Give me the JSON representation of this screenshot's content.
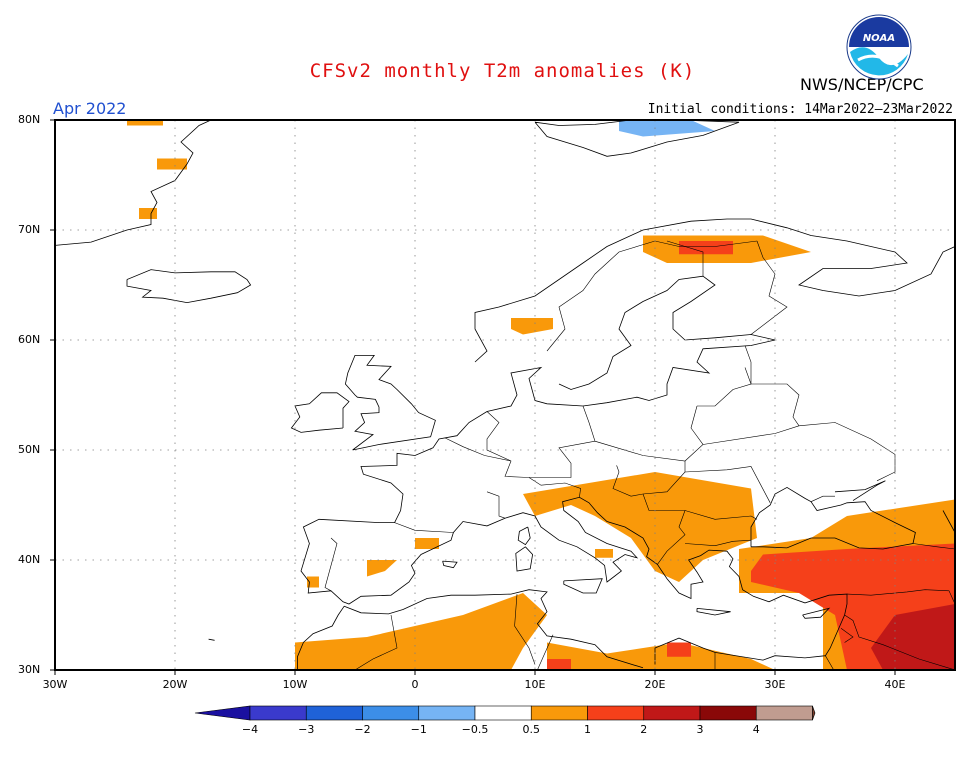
{
  "header": {
    "title": "CFSv2 monthly T2m anomalies (K)",
    "agency": "NWS/NCEP/CPC",
    "month": "Apr 2022",
    "initial_conditions": "Initial conditions: 14Mar2022–23Mar2022",
    "logo_text": "NOAA"
  },
  "colors": {
    "title": "#e01010",
    "month": "#2050d0",
    "land_outline": "#000000",
    "grid": "#808080"
  },
  "map": {
    "lon_range": [
      -30,
      45
    ],
    "lat_range": [
      30,
      80
    ],
    "lat_labels": [
      "80N",
      "70N",
      "60N",
      "50N",
      "40N",
      "30N"
    ],
    "lon_labels": [
      "30W",
      "20W",
      "10W",
      "0",
      "10E",
      "20E",
      "30E",
      "40E"
    ]
  },
  "colorbar": {
    "bins": [
      {
        "color": "#1a10a0"
      },
      {
        "color": "#3a3acc"
      },
      {
        "color": "#1f62d8"
      },
      {
        "color": "#3c8ee8"
      },
      {
        "color": "#76b4f4"
      },
      {
        "color": "#ffffff"
      },
      {
        "color": "#f9990a"
      },
      {
        "color": "#f5401a"
      },
      {
        "color": "#c01818"
      },
      {
        "color": "#8a0808"
      },
      {
        "color": "#c09c90"
      },
      {
        "color": "#7a3c2c"
      }
    ],
    "labels": [
      "−4",
      "−3",
      "−2",
      "−1",
      "−0.5",
      "0.5",
      "1",
      "2",
      "3",
      "4"
    ]
  },
  "anomaly_regions": [
    {
      "name": "svalbard",
      "class": "warm1",
      "lonlat": [
        [
          -21.5,
          76.5
        ],
        [
          -19,
          76.5
        ],
        [
          -19,
          75.5
        ],
        [
          -21.5,
          75.5
        ]
      ]
    },
    {
      "name": "svalbard-north",
      "class": "warm1",
      "lonlat": [
        [
          -24,
          80
        ],
        [
          -21,
          80
        ],
        [
          -21,
          79.5
        ],
        [
          -24,
          79.5
        ]
      ]
    },
    {
      "name": "svalbard-south",
      "class": "warm1",
      "lonlat": [
        [
          -23,
          72
        ],
        [
          -21.5,
          72
        ],
        [
          -21.5,
          71
        ],
        [
          -23,
          71
        ]
      ]
    },
    {
      "name": "franz-josef-cold",
      "class": "cold1",
      "lonlat": [
        [
          17,
          80
        ],
        [
          23,
          80
        ],
        [
          25,
          79
        ],
        [
          19,
          78.5
        ],
        [
          17,
          79
        ]
      ]
    },
    {
      "name": "lapland",
      "class": "warm1",
      "lonlat": [
        [
          19,
          69.5
        ],
        [
          29,
          69.5
        ],
        [
          33,
          68
        ],
        [
          28,
          67
        ],
        [
          21,
          67
        ],
        [
          19,
          68
        ]
      ]
    },
    {
      "name": "lapland-core",
      "class": "warm2",
      "lonlat": [
        [
          22,
          69
        ],
        [
          26.5,
          69
        ],
        [
          26.5,
          67.8
        ],
        [
          22,
          67.8
        ]
      ]
    },
    {
      "name": "norway-west",
      "class": "warm1",
      "lonlat": [
        [
          8,
          62
        ],
        [
          11.5,
          62
        ],
        [
          11.5,
          61
        ],
        [
          9,
          60.5
        ],
        [
          8,
          61
        ]
      ]
    },
    {
      "name": "balkans",
      "class": "warm1",
      "lonlat": [
        [
          9,
          46
        ],
        [
          20,
          48
        ],
        [
          28,
          46.5
        ],
        [
          28.5,
          42
        ],
        [
          24,
          40
        ],
        [
          22,
          38
        ],
        [
          20,
          39
        ],
        [
          18,
          42
        ],
        [
          15,
          44
        ],
        [
          13,
          45
        ],
        [
          10,
          44
        ]
      ]
    },
    {
      "name": "spain-east",
      "class": "warm1",
      "lonlat": [
        [
          -4,
          40
        ],
        [
          -1.5,
          40
        ],
        [
          -2.5,
          39
        ],
        [
          -4,
          38.5
        ]
      ]
    },
    {
      "name": "spain-sw",
      "class": "warm1",
      "lonlat": [
        [
          -9,
          38.5
        ],
        [
          -8,
          38.5
        ],
        [
          -8,
          37.5
        ],
        [
          -9,
          37.5
        ]
      ]
    },
    {
      "name": "italy-south",
      "class": "warm1",
      "lonlat": [
        [
          15,
          41
        ],
        [
          16.5,
          41
        ],
        [
          16.5,
          40.2
        ],
        [
          15,
          40.2
        ]
      ]
    },
    {
      "name": "sardinia",
      "class": "warm1",
      "lonlat": [
        [
          0,
          42
        ],
        [
          2,
          42
        ],
        [
          2,
          41
        ],
        [
          0,
          41
        ]
      ]
    },
    {
      "name": "north-africa",
      "class": "warm1",
      "lonlat": [
        [
          -10,
          32.5
        ],
        [
          -4,
          33
        ],
        [
          4,
          35
        ],
        [
          9,
          37
        ],
        [
          11,
          35
        ],
        [
          9,
          32
        ],
        [
          8,
          30
        ],
        [
          -10,
          30
        ]
      ]
    },
    {
      "name": "libya-egypt",
      "class": "warm1",
      "lonlat": [
        [
          11,
          32.5
        ],
        [
          16,
          31.5
        ],
        [
          22,
          32.5
        ],
        [
          28,
          31
        ],
        [
          30,
          30
        ],
        [
          11,
          30
        ]
      ]
    },
    {
      "name": "libya-warm2",
      "class": "warm2",
      "lonlat": [
        [
          11,
          31
        ],
        [
          13,
          31
        ],
        [
          13,
          30
        ],
        [
          11,
          30
        ]
      ]
    },
    {
      "name": "libya-warm2b",
      "class": "warm2",
      "lonlat": [
        [
          21,
          32.5
        ],
        [
          23,
          32.5
        ],
        [
          23,
          31.2
        ],
        [
          21,
          31.2
        ]
      ]
    },
    {
      "name": "caucasus-warm1",
      "class": "warm1",
      "lonlat": [
        [
          36,
          44
        ],
        [
          45,
          45.5
        ],
        [
          45,
          36
        ],
        [
          40,
          35
        ],
        [
          36,
          30
        ],
        [
          34,
          30
        ],
        [
          34,
          37
        ],
        [
          27,
          37
        ],
        [
          27,
          41
        ],
        [
          33,
          42
        ]
      ]
    },
    {
      "name": "turkey-warm2",
      "class": "warm2",
      "lonlat": [
        [
          29,
          40.5
        ],
        [
          36,
          41
        ],
        [
          45,
          41.5
        ],
        [
          45,
          30
        ],
        [
          36,
          30
        ],
        [
          35,
          35
        ],
        [
          32,
          37
        ],
        [
          28,
          38
        ],
        [
          28,
          39
        ]
      ]
    },
    {
      "name": "mideast-warm3",
      "class": "warm3",
      "lonlat": [
        [
          40,
          35
        ],
        [
          45,
          36
        ],
        [
          45,
          30
        ],
        [
          39,
          30
        ],
        [
          38,
          32
        ]
      ]
    }
  ]
}
